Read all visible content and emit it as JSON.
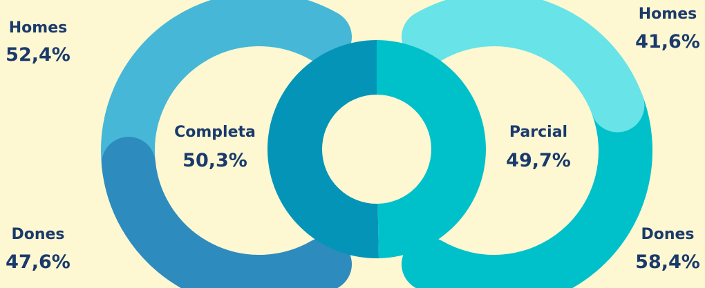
{
  "chart_data": {
    "type": "pie",
    "title": "",
    "center": {
      "type": "donut",
      "slices": [
        {
          "label": "Completa",
          "value": 50.3,
          "value_label": "50,3%",
          "color": "#0494b8"
        },
        {
          "label": "Parcial",
          "value": 49.7,
          "value_label": "49,7%",
          "color": "#00c1c9"
        }
      ]
    },
    "left_breakdown": {
      "parent": "Completa",
      "segments": [
        {
          "label": "Homes",
          "value": 52.4,
          "value_label": "52,4%",
          "color": "#46b7d7"
        },
        {
          "label": "Dones",
          "value": 47.6,
          "value_label": "47,6%",
          "color": "#2e8bbd"
        }
      ]
    },
    "right_breakdown": {
      "parent": "Parcial",
      "segments": [
        {
          "label": "Homes",
          "value": 41.6,
          "value_label": "41,6%",
          "color": "#68e3e7"
        },
        {
          "label": "Dones",
          "value": 58.4,
          "value_label": "58,4%",
          "color": "#00c1c9"
        }
      ]
    }
  }
}
